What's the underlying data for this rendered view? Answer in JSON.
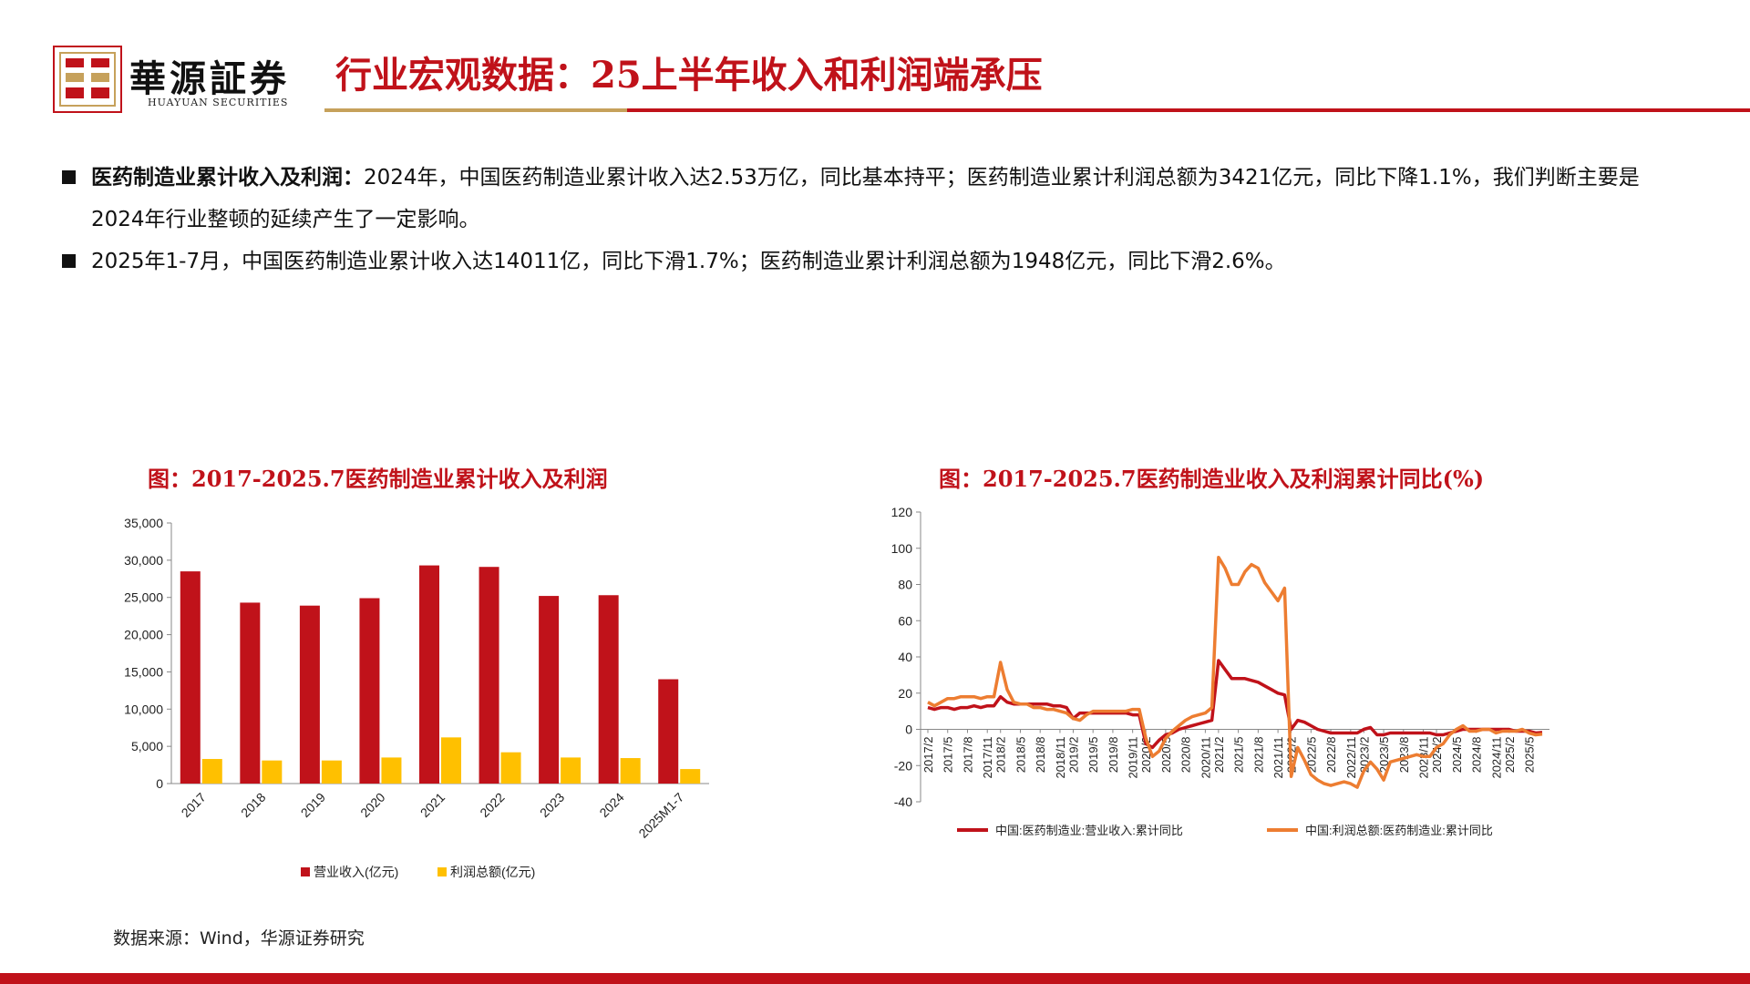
{
  "header": {
    "brand_cn": "華源証券",
    "brand_en": "HUAYUAN SECURITIES",
    "title": "行业宏观数据：25上半年收入和利润端承压"
  },
  "bullets": [
    {
      "bold": "医药制造业累计收入及利润：",
      "text": "2024年，中国医药制造业累计收入达2.53万亿，同比基本持平；医药制造业累计利润总额为3421亿元，同比下降1.1%，我们判断主要是2024年行业整顿的延续产生了一定影响。"
    },
    {
      "bold": "",
      "text": "2025年1-7月，中国医药制造业累计收入达14011亿，同比下滑1.7%；医药制造业累计利润总额为1948亿元，同比下滑2.6%。"
    }
  ],
  "colors": {
    "red": "#c0121a",
    "gold": "#c6a15b",
    "yellow": "#ffc000",
    "orange": "#ed7d31"
  },
  "chart_data": [
    {
      "type": "bar",
      "title": "图：2017-2025.7医药制造业累计收入及利润",
      "categories": [
        "2017",
        "2018",
        "2019",
        "2020",
        "2021",
        "2022",
        "2023",
        "2024",
        "2025M1-7"
      ],
      "series": [
        {
          "name": "营业收入(亿元)",
          "color": "#c0121a",
          "values": [
            28500,
            24300,
            23900,
            24900,
            29300,
            29100,
            25200,
            25300,
            14011
          ]
        },
        {
          "name": "利润总额(亿元)",
          "color": "#ffc000",
          "values": [
            3300,
            3100,
            3100,
            3500,
            6200,
            4200,
            3500,
            3421,
            1948
          ]
        }
      ],
      "ylim": [
        0,
        35000
      ],
      "yticks": [
        "0",
        "5,000",
        "10,000",
        "15,000",
        "20,000",
        "25,000",
        "30,000",
        "35,000"
      ],
      "grid": false,
      "legend": "bottom"
    },
    {
      "type": "line",
      "title": "图：2017-2025.7医药制造业收入及利润累计同比(%)",
      "x": [
        "2017/2",
        "2017/3",
        "2017/4",
        "2017/5",
        "2017/6",
        "2017/7",
        "2017/8",
        "2017/9",
        "2017/10",
        "2017/11",
        "2017/12",
        "2018/2",
        "2018/3",
        "2018/4",
        "2018/5",
        "2018/6",
        "2018/7",
        "2018/8",
        "2018/9",
        "2018/10",
        "2018/11",
        "2018/12",
        "2019/2",
        "2019/3",
        "2019/4",
        "2019/5",
        "2019/6",
        "2019/7",
        "2019/8",
        "2019/9",
        "2019/10",
        "2019/11",
        "2019/12",
        "2020/2",
        "2020/3",
        "2020/4",
        "2020/5",
        "2020/6",
        "2020/7",
        "2020/8",
        "2020/9",
        "2020/10",
        "2020/11",
        "2020/12",
        "2021/2",
        "2021/3",
        "2021/4",
        "2021/5",
        "2021/6",
        "2021/7",
        "2021/8",
        "2021/9",
        "2021/10",
        "2021/11",
        "2021/12",
        "2022/2",
        "2022/3",
        "2022/4",
        "2022/5",
        "2022/6",
        "2022/7",
        "2022/8",
        "2022/9",
        "2022/10",
        "2022/11",
        "2022/12",
        "2023/2",
        "2023/3",
        "2023/4",
        "2023/5",
        "2023/6",
        "2023/7",
        "2023/8",
        "2023/9",
        "2023/10",
        "2023/11",
        "2023/12",
        "2024/2",
        "2024/3",
        "2024/4",
        "2024/5",
        "2024/6",
        "2024/7",
        "2024/8",
        "2024/9",
        "2024/10",
        "2024/11",
        "2024/12",
        "2025/2",
        "2025/3",
        "2025/4",
        "2025/5",
        "2025/6",
        "2025/7"
      ],
      "tick_labels": [
        "2017/2",
        "2017/5",
        "2017/8",
        "2017/11",
        "2018/2",
        "2018/5",
        "2018/8",
        "2018/11",
        "2019/2",
        "2019/5",
        "2019/8",
        "2019/11",
        "2020/2",
        "2020/5",
        "2020/8",
        "2020/11",
        "2021/2",
        "2021/5",
        "2021/8",
        "2021/11",
        "2022/2",
        "2022/5",
        "2022/8",
        "2022/11",
        "2023/2",
        "2023/5",
        "2023/8",
        "2023/11",
        "2024/2",
        "2024/5",
        "2024/8",
        "2024/11",
        "2025/2",
        "2025/5"
      ],
      "series": [
        {
          "name": "中国:医药制造业:营业收入:累计同比",
          "color": "#c0121a",
          "values": [
            12,
            11,
            12,
            12,
            11,
            12,
            12,
            13,
            12,
            13,
            13,
            18,
            15,
            14,
            14,
            14,
            14,
            14,
            14,
            13,
            13,
            12,
            6,
            9,
            9,
            9,
            9,
            9,
            9,
            9,
            9,
            8,
            8,
            -8,
            -10,
            -6,
            -3,
            -2,
            0,
            1,
            2,
            3,
            4,
            5,
            38,
            33,
            28,
            28,
            28,
            27,
            26,
            24,
            22,
            20,
            19,
            0,
            5,
            4,
            2,
            0,
            -1,
            -2,
            -2,
            -2,
            -2,
            -2,
            0,
            1,
            -3,
            -3,
            -2,
            -2,
            -2,
            -2,
            -2,
            -2,
            -2,
            -3,
            -3,
            -2,
            -1,
            0,
            0,
            0,
            0,
            0,
            0,
            0,
            0,
            -1,
            -1,
            -1,
            -2,
            -1.7
          ]
        },
        {
          "name": "中国:利润总额:医药制造业:累计同比",
          "color": "#ed7d31",
          "values": [
            15,
            13,
            15,
            17,
            17,
            18,
            18,
            18,
            17,
            18,
            18,
            37,
            22,
            15,
            14,
            14,
            12,
            12,
            11,
            11,
            10,
            9,
            6,
            5,
            8,
            10,
            10,
            10,
            10,
            10,
            10,
            11,
            11,
            -5,
            -15,
            -12,
            -5,
            -1,
            2,
            5,
            7,
            8,
            9,
            12,
            95,
            89,
            80,
            80,
            87,
            91,
            89,
            81,
            76,
            71,
            78,
            -26,
            -10,
            -17,
            -25,
            -28,
            -30,
            -31,
            -30,
            -29,
            -30,
            -32,
            -23,
            -18,
            -22,
            -28,
            -18,
            -17,
            -16,
            -15,
            -14,
            -15,
            -15,
            -10,
            -8,
            -3,
            0,
            2,
            -1,
            -1,
            0,
            0,
            -2,
            -1,
            -1,
            -1,
            0,
            -2,
            -3,
            -2.6
          ]
        }
      ],
      "ylim": [
        -40,
        120
      ],
      "yticks": [
        "-40",
        "-20",
        "0",
        "20",
        "40",
        "60",
        "80",
        "100",
        "120"
      ],
      "grid": false,
      "legend": "bottom"
    }
  ],
  "source": "数据来源：Wind，华源证券研究"
}
